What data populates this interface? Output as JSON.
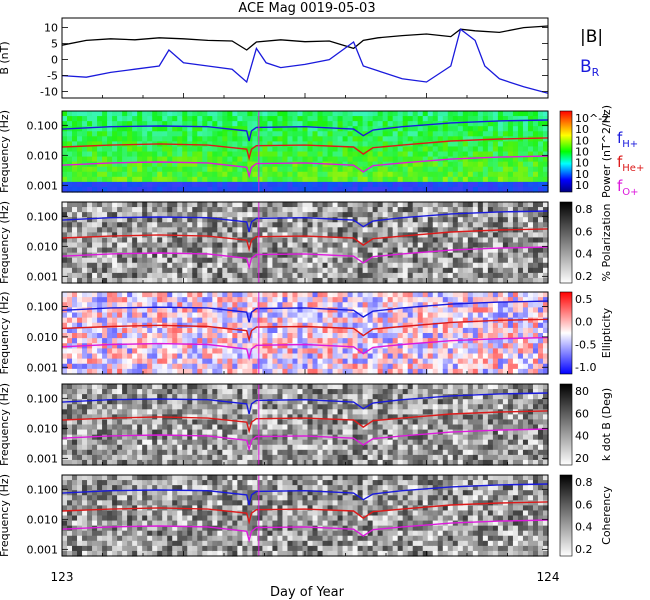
{
  "title": "ACE Mag 0019-05-03",
  "xlabel": "Day of Year",
  "chart_data": {
    "type": "line",
    "title": "ACE Mag 0019-05-03",
    "xlabel": "Day of Year",
    "xlim": [
      123,
      124
    ],
    "x_ticks": [
      "123",
      "124"
    ],
    "panels": [
      {
        "id": "mag",
        "type": "line",
        "ylabel": "B (nT)",
        "ylim": [
          -12,
          13
        ],
        "y_ticks": [
          "10",
          "5",
          "0",
          "-5",
          "-10"
        ],
        "legend": [
          {
            "label": "|B|",
            "color": "#000000"
          },
          {
            "label": "B_R",
            "color": "#1a1adc"
          }
        ],
        "series": [
          {
            "name": "|B|",
            "color": "#000000",
            "x": [
              123.0,
              123.05,
              123.1,
              123.15,
              123.2,
              123.25,
              123.3,
              123.35,
              123.38,
              123.4,
              123.45,
              123.5,
              123.55,
              123.6,
              123.62,
              123.65,
              123.7,
              123.75,
              123.8,
              123.82,
              123.85,
              123.9,
              123.95,
              124.0
            ],
            "values": [
              4.5,
              6.0,
              6.5,
              6.2,
              6.8,
              6.5,
              6.0,
              5.8,
              3.0,
              5.5,
              6.2,
              5.6,
              5.8,
              3.5,
              6.0,
              6.8,
              7.5,
              8.0,
              7.2,
              9.5,
              9.0,
              8.5,
              10.0,
              10.5
            ]
          },
          {
            "name": "B_R",
            "color": "#1a1adc",
            "x": [
              123.0,
              123.05,
              123.1,
              123.15,
              123.2,
              123.22,
              123.25,
              123.3,
              123.35,
              123.38,
              123.4,
              123.42,
              123.45,
              123.5,
              123.55,
              123.6,
              123.62,
              123.65,
              123.7,
              123.75,
              123.8,
              123.82,
              123.85,
              123.87,
              123.9,
              123.95,
              124.0
            ],
            "values": [
              -5.0,
              -5.5,
              -4.0,
              -3.0,
              -2.0,
              3.0,
              -1.0,
              -2.0,
              -3.0,
              -7.0,
              3.5,
              -1.0,
              -2.5,
              -1.5,
              0.0,
              5.5,
              -2.0,
              -3.5,
              -6.0,
              -7.0,
              -2.0,
              9.5,
              6.0,
              -2.0,
              -6.0,
              -8.5,
              -10.5
            ]
          }
        ]
      },
      {
        "id": "power",
        "type": "heatmap",
        "ylabel": "Frequency (Hz)",
        "ylim": [
          0.0006,
          0.3
        ],
        "yscale": "log",
        "y_ticks": [
          "0.100",
          "0.010",
          "0.001"
        ],
        "colorbar": {
          "label": "Power (nT^2/Hz)",
          "ticks": [
            "10^-2",
            "10",
            "10",
            "10",
            "10",
            "10",
            "10"
          ],
          "colormap": "rainbow"
        },
        "legend": [
          {
            "label": "f_H+",
            "color": "#1a1adc"
          },
          {
            "label": "f_He+",
            "color": "#dc1a1a"
          },
          {
            "label": "f_O+",
            "color": "#dc1adc"
          }
        ]
      },
      {
        "id": "polarization",
        "type": "heatmap",
        "ylabel": "Frequency (Hz)",
        "ylim": [
          0.0006,
          0.3
        ],
        "yscale": "log",
        "y_ticks": [
          "0.100",
          "0.010",
          "0.001"
        ],
        "colorbar": {
          "label": "% Polarization",
          "ticks": [
            "0.8",
            "0.6",
            "0.4",
            "0.2"
          ],
          "range": [
            0,
            1
          ],
          "colormap": "gray"
        }
      },
      {
        "id": "ellipticity",
        "type": "heatmap",
        "ylabel": "Frequency (Hz)",
        "ylim": [
          0.0006,
          0.3
        ],
        "yscale": "log",
        "y_ticks": [
          "0.100",
          "0.010",
          "0.001"
        ],
        "colorbar": {
          "label": "Ellipticity",
          "ticks": [
            "0.5",
            "0.0",
            "-0.5",
            "-1.0"
          ],
          "range": [
            -1,
            1
          ],
          "colormap": "blue-white-red"
        }
      },
      {
        "id": "kdotb",
        "type": "heatmap",
        "ylabel": "Frequency (Hz)",
        "ylim": [
          0.0006,
          0.3
        ],
        "yscale": "log",
        "y_ticks": [
          "0.100",
          "0.010",
          "0.001"
        ],
        "colorbar": {
          "label": "k dot B (Deg)",
          "ticks": [
            "80",
            "60",
            "40",
            "20"
          ],
          "range": [
            0,
            90
          ],
          "colormap": "gray"
        }
      },
      {
        "id": "coherency",
        "type": "heatmap",
        "ylabel": "Frequency (Hz)",
        "ylim": [
          0.0006,
          0.3
        ],
        "yscale": "log",
        "y_ticks": [
          "0.100",
          "0.010",
          "0.001"
        ],
        "colorbar": {
          "label": "Coherency",
          "ticks": [
            "0.8",
            "0.6",
            "0.4",
            "0.2"
          ],
          "range": [
            0,
            1
          ],
          "colormap": "gray"
        }
      }
    ],
    "gyrofrequency_lines": [
      {
        "name": "f_H+",
        "color": "#1a1adc",
        "x": [
          123.0,
          123.1,
          123.2,
          123.3,
          123.38,
          123.385,
          123.39,
          123.4,
          123.5,
          123.6,
          123.62,
          123.64,
          123.7,
          123.8,
          123.9,
          124.0
        ],
        "values": [
          0.075,
          0.09,
          0.095,
          0.09,
          0.065,
          0.03,
          0.065,
          0.085,
          0.09,
          0.075,
          0.045,
          0.07,
          0.09,
          0.12,
          0.14,
          0.15
        ]
      },
      {
        "name": "f_He+",
        "color": "#dc1a1a",
        "x": [
          123.0,
          123.1,
          123.2,
          123.3,
          123.38,
          123.385,
          123.39,
          123.4,
          123.5,
          123.6,
          123.62,
          123.64,
          123.7,
          123.8,
          123.9,
          124.0
        ],
        "values": [
          0.019,
          0.022,
          0.024,
          0.022,
          0.016,
          0.008,
          0.016,
          0.021,
          0.022,
          0.019,
          0.011,
          0.018,
          0.022,
          0.03,
          0.035,
          0.038
        ]
      },
      {
        "name": "f_O+",
        "color": "#dc1adc",
        "x": [
          123.0,
          123.1,
          123.2,
          123.3,
          123.38,
          123.385,
          123.39,
          123.4,
          123.5,
          123.6,
          123.62,
          123.64,
          123.7,
          123.8,
          123.9,
          124.0
        ],
        "values": [
          0.0047,
          0.0056,
          0.006,
          0.0056,
          0.004,
          0.002,
          0.004,
          0.0053,
          0.0056,
          0.0047,
          0.0028,
          0.0045,
          0.0056,
          0.0075,
          0.0087,
          0.0095
        ]
      }
    ]
  }
}
